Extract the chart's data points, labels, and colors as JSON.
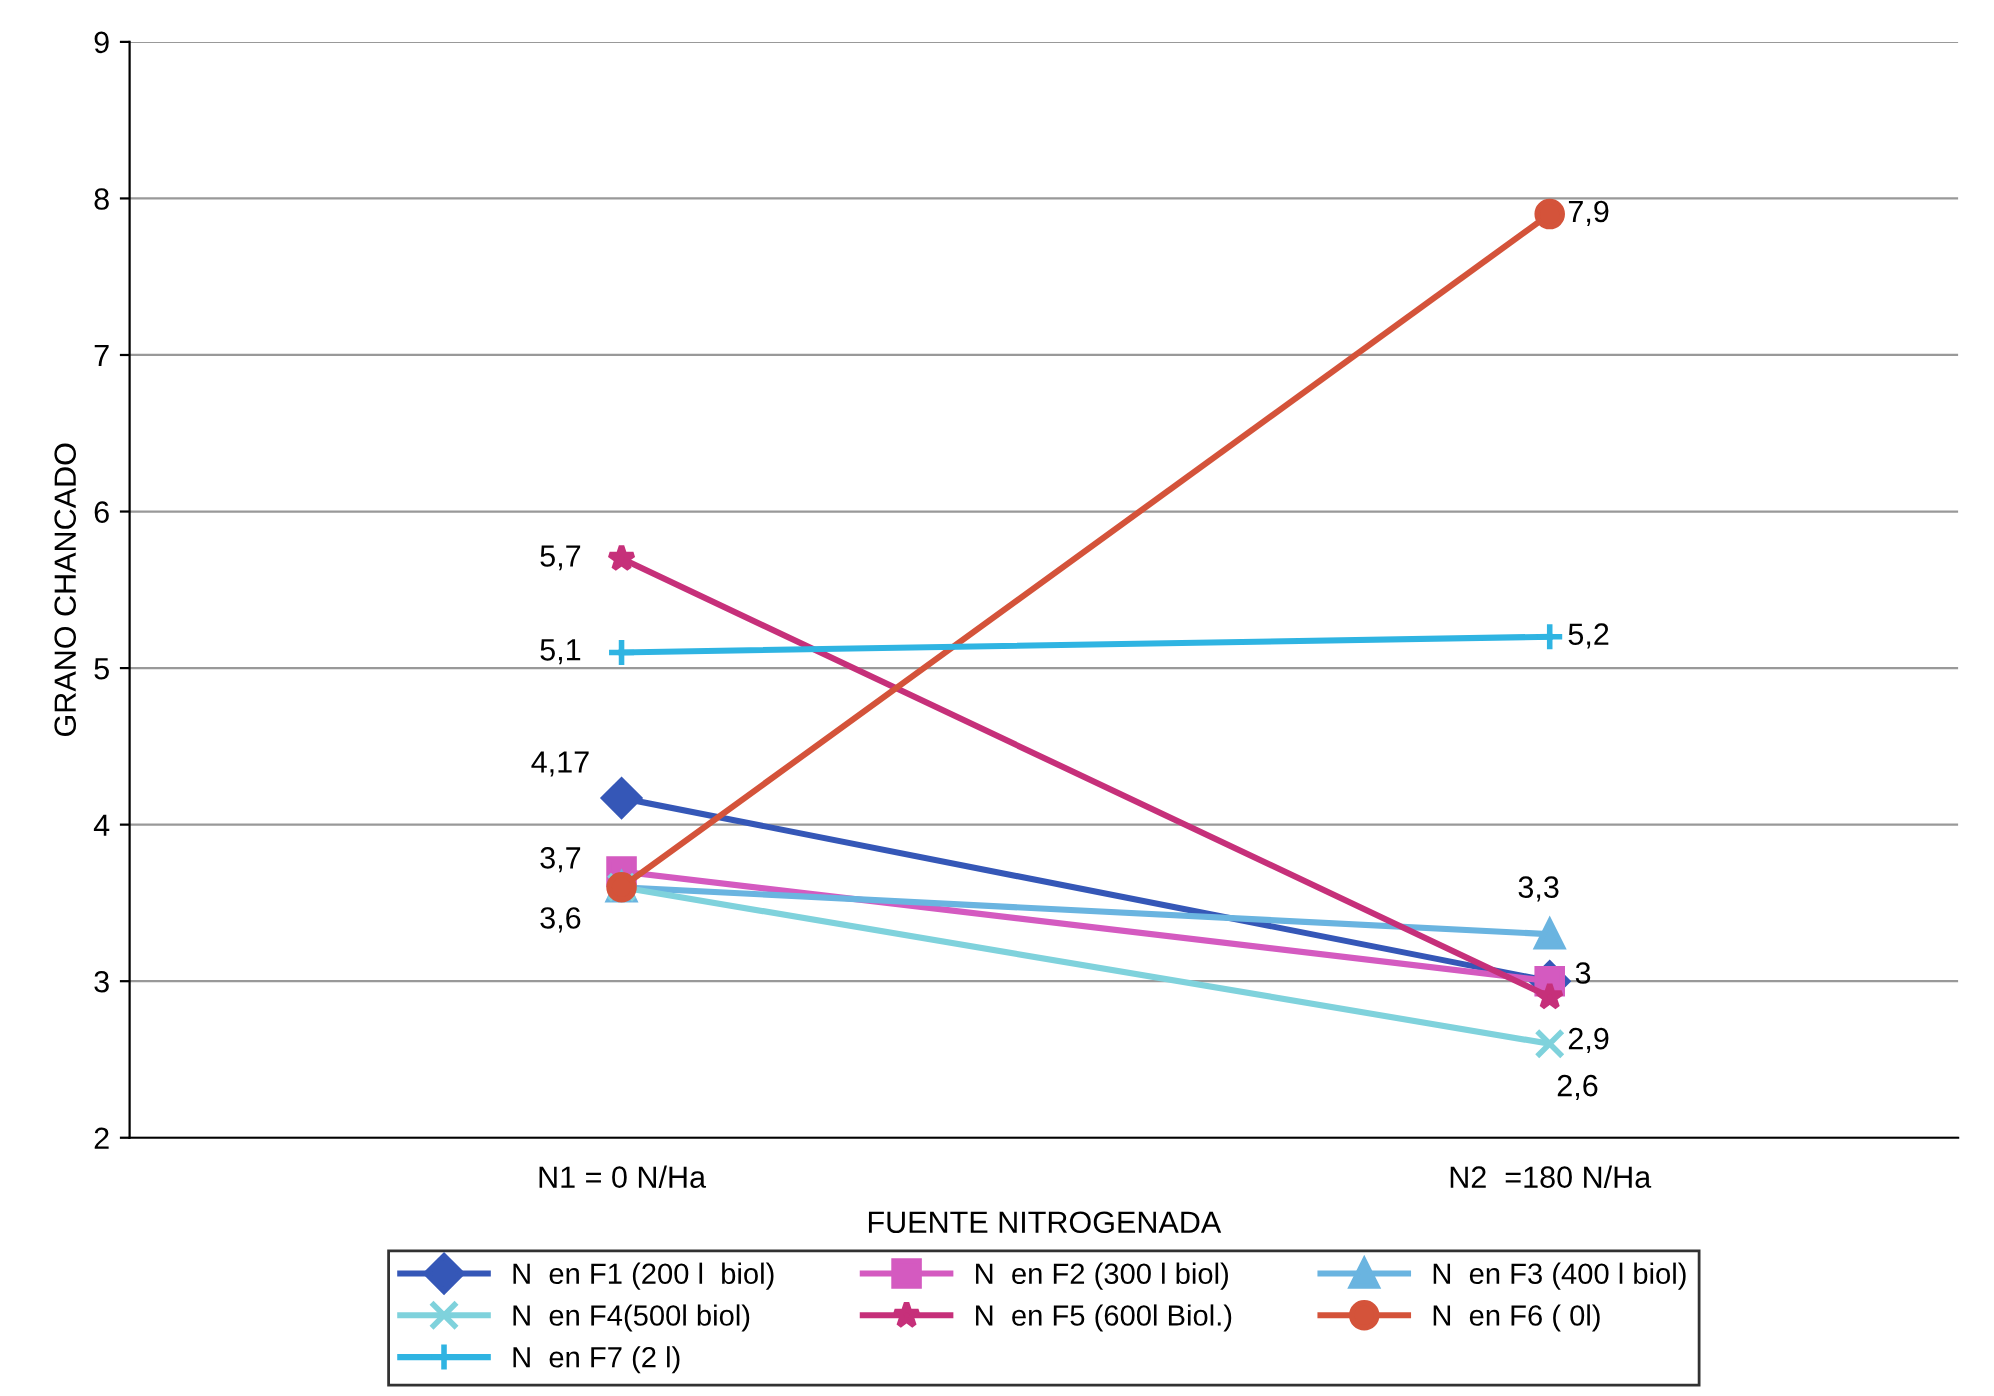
{
  "chart_data": {
    "type": "line",
    "ylabel": "GRANO CHANCADO",
    "xlabel": "FUENTE NITROGENADA",
    "categories": [
      "N1 = 0 N/Ha",
      "N2  =180 N/Ha"
    ],
    "ylim": [
      2,
      9
    ],
    "yticks": [
      2,
      3,
      4,
      5,
      6,
      7,
      8,
      9
    ],
    "grid": "y",
    "legend": "bottom",
    "series": [
      {
        "name": "N  en F1 (200 l  biol)",
        "color": "#3557b7",
        "marker": "diamond",
        "values": [
          4.17,
          3.0
        ],
        "value_labels": [
          "4,17",
          null
        ]
      },
      {
        "name": "N  en F2 (300 l biol)",
        "color": "#d45ac0",
        "marker": "square",
        "values": [
          3.7,
          3.0
        ],
        "value_labels": [
          "3,7",
          "3"
        ]
      },
      {
        "name": "N  en F3 (400 l biol)",
        "color": "#6ab4e0",
        "marker": "triangle",
        "values": [
          3.6,
          3.3
        ],
        "value_labels": [
          null,
          "3,3"
        ]
      },
      {
        "name": "N  en F4(500l biol)",
        "color": "#7fd2dc",
        "marker": "cross",
        "values": [
          3.6,
          2.6
        ],
        "value_labels": [
          null,
          "2,6"
        ]
      },
      {
        "name": "N  en F5 (600l Biol.)",
        "color": "#c6307a",
        "marker": "star",
        "values": [
          5.7,
          2.9
        ],
        "value_labels": [
          "5,7",
          "2,9"
        ]
      },
      {
        "name": "N  en F6 ( 0l)",
        "color": "#d4533a",
        "marker": "circle",
        "values": [
          3.6,
          7.9
        ],
        "value_labels": [
          "3,6",
          "7,9"
        ]
      },
      {
        "name": "N  en F7 (2 l)",
        "color": "#2fb4e2",
        "marker": "plus",
        "values": [
          5.1,
          5.2
        ],
        "value_labels": [
          "5,1",
          "5,2"
        ]
      }
    ]
  }
}
